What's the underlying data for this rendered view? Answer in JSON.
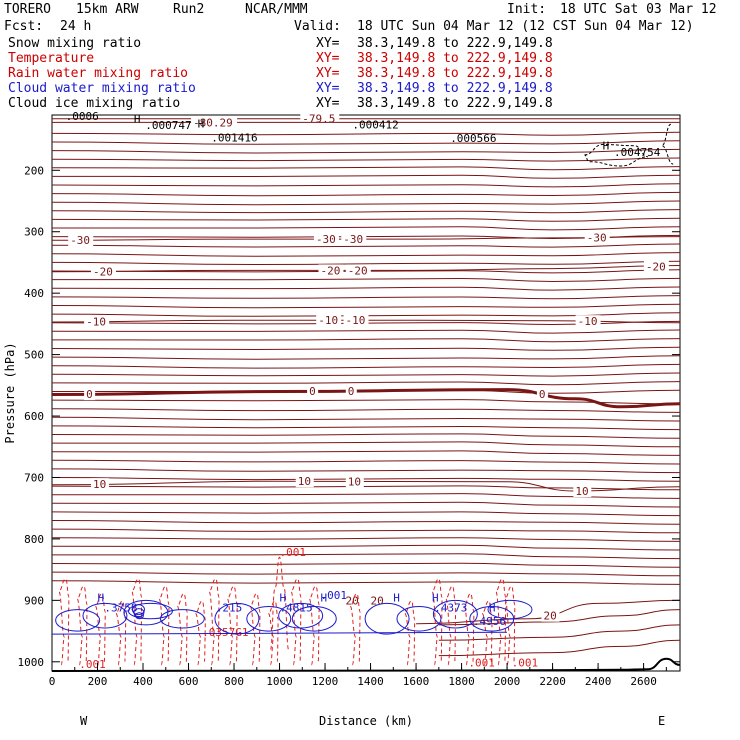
{
  "header": {
    "model": "TORERO",
    "grid": "15km ARW",
    "run": "Run2",
    "org": "NCAR/MMM",
    "init_label": "Init:",
    "init": "18 UTC Sat 03 Mar 12",
    "fcst_label": "Fcst:",
    "fcst": "24 h",
    "valid_label": "Valid:",
    "valid": "18 UTC Sun 04 Mar 12 (12 CST Sun 04 Mar 12)"
  },
  "fields": [
    {
      "name": "Snow mixing ratio",
      "color": "#000000"
    },
    {
      "name": "Temperature",
      "color": "#cc0000"
    },
    {
      "name": "Rain water mixing ratio",
      "color": "#cc0000"
    },
    {
      "name": "Cloud water mixing ratio",
      "color": "#1a1acc"
    },
    {
      "name": "Cloud ice mixing ratio",
      "color": "#000000"
    }
  ],
  "xsect_label": "XY=",
  "xsect": "38.3,149.8 to 222.9,149.8",
  "colors": {
    "temperature": "#7a1515",
    "rain": "#e02020",
    "cloud_water": "#1a1acc",
    "snow": "#000000",
    "ice": "#000000",
    "terrain": "#000000"
  },
  "chart_data": {
    "type": "line",
    "title": "Vertical cross section",
    "xlabel": "Distance (km)",
    "ylabel": "Pressure (hPa)",
    "xlim": [
      0,
      2760
    ],
    "ylim": [
      1015,
      110
    ],
    "x_ticks": [
      0,
      200,
      400,
      600,
      800,
      1000,
      1200,
      1400,
      1600,
      1800,
      2000,
      2200,
      2400,
      2600
    ],
    "y_ticks": [
      200,
      300,
      400,
      500,
      600,
      700,
      800,
      900,
      1000
    ],
    "end_labels": {
      "west": "W",
      "east": "E"
    },
    "temperature_isotherms": [
      {
        "label": "-30",
        "x": [
          0,
          800,
          1600,
          2200,
          2760
        ],
        "p": [
          314,
          312,
          312,
          310,
          308
        ],
        "labels_at": [
          80,
          1160,
          1280,
          2350
        ]
      },
      {
        "label": "-20",
        "x": [
          0,
          800,
          1600,
          2200,
          2760
        ],
        "p": [
          365,
          363,
          363,
          360,
          355
        ],
        "labels_at": [
          180,
          1180,
          1300,
          2610
        ]
      },
      {
        "label": "-10",
        "x": [
          0,
          800,
          1600,
          2200,
          2760
        ],
        "p": [
          447,
          444,
          444,
          445,
          448
        ],
        "labels_at": [
          150,
          1170,
          1290,
          2310
        ]
      },
      {
        "label": "0",
        "x": [
          0,
          1000,
          2000,
          2300,
          2500,
          2760
        ],
        "p": [
          565,
          560,
          557,
          572,
          585,
          580
        ],
        "labels_at": [
          150,
          1130,
          1300,
          2140
        ]
      },
      {
        "label": "10",
        "x": [
          0,
          1000,
          2000,
          2300,
          2760
        ],
        "p": [
          712,
          706,
          707,
          722,
          715
        ],
        "labels_at": [
          180,
          1080,
          1300,
          2300
        ]
      },
      {
        "label": "20",
        "x": [
          1600,
          2100,
          2400,
          2760
        ],
        "p": [
          938,
          930,
          905,
          900
        ],
        "labels_at": [
          1290,
          1400,
          2160
        ]
      },
      {
        "label": "-79.5",
        "x": [
          0,
          2760
        ],
        "p": [
          116,
          116
        ],
        "labels_at": [
          1100
        ]
      },
      {
        "label": "-80.29",
        "x": [
          0,
          2760
        ],
        "p": [
          122,
          122
        ],
        "labels_at": [
          620
        ]
      }
    ],
    "pressure_at_top_labels": [
      {
        "text": ".000747",
        "x": 410,
        "p": 133
      },
      {
        "text": ".001416",
        "x": 700,
        "p": 153
      },
      {
        "text": ".000412",
        "x": 1320,
        "p": 132
      },
      {
        "text": ".000566",
        "x": 1750,
        "p": 154
      },
      {
        "text": ".004754",
        "x": 2470,
        "p": 177
      },
      {
        "text": ".0006",
        "x": 60,
        "p": 118
      }
    ],
    "rain_labels": [
      {
        "text": ".001",
        "x": 1000,
        "p": 828
      },
      {
        "text": ".001",
        "x": 120,
        "p": 1010
      },
      {
        "text": ".001",
        "x": 1830,
        "p": 1008
      },
      {
        "text": ".001",
        "x": 2020,
        "p": 1008
      },
      {
        "text": ".0357G1",
        "x": 660,
        "p": 958
      }
    ],
    "cloud_water_labels": [
      {
        "text": ".3758",
        "x": 230,
        "p": 918
      },
      {
        "text": ".215",
        "x": 720,
        "p": 918
      },
      {
        "text": ".4815",
        "x": 1000,
        "p": 918
      },
      {
        "text": ".4373",
        "x": 1680,
        "p": 918
      },
      {
        "text": ".4956",
        "x": 1850,
        "p": 940
      },
      {
        "text": ".001",
        "x": 1180,
        "p": 898
      }
    ],
    "highs": [
      {
        "x": 200,
        "p": 902
      },
      {
        "x": 1000,
        "p": 902
      },
      {
        "x": 1180,
        "p": 902
      },
      {
        "x": 1500,
        "p": 902
      },
      {
        "x": 1670,
        "p": 902
      },
      {
        "x": 1920,
        "p": 918
      },
      {
        "x": 2420,
        "p": 166
      },
      {
        "x": 360,
        "p": 122
      },
      {
        "x": 640,
        "p": 130
      }
    ],
    "terrain": {
      "x": [
        0,
        2000,
        2500,
        2620,
        2700,
        2760
      ],
      "p": [
        1015,
        1014,
        1013,
        1012,
        995,
        1005
      ]
    }
  }
}
